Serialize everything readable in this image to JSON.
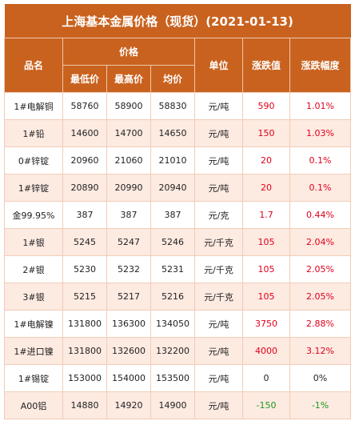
{
  "title": "上海基本金属价格（现货）(2021-01-13)",
  "headers": {
    "name": "品名",
    "price": "价格",
    "low": "最低价",
    "high": "最高价",
    "avg": "均价",
    "unit": "单位",
    "change": "涨跌值",
    "pct": "涨跌幅度"
  },
  "rows": [
    [
      "1#电解铜",
      "58760",
      "58900",
      "58830",
      "元/吨",
      "590",
      "1.01%"
    ],
    [
      "1#铅",
      "14600",
      "14700",
      "14650",
      "元/吨",
      "150",
      "1.03%"
    ],
    [
      "0#锌锭",
      "20960",
      "21060",
      "21010",
      "元/吨",
      "20",
      "0.1%"
    ],
    [
      "1#锌锭",
      "20890",
      "20990",
      "20940",
      "元/吨",
      "20",
      "0.1%"
    ],
    [
      "金99.95%",
      "387",
      "387",
      "387",
      "元/克",
      "1.7",
      "0.44%"
    ],
    [
      "1#银",
      "5245",
      "5247",
      "5246",
      "元/千克",
      "105",
      "2.04%"
    ],
    [
      "2#银",
      "5230",
      "5232",
      "5231",
      "元/千克",
      "105",
      "2.05%"
    ],
    [
      "3#银",
      "5215",
      "5217",
      "5216",
      "元/千克",
      "105",
      "2.05%"
    ],
    [
      "1#电解镍",
      "131800",
      "136300",
      "134050",
      "元/吨",
      "3750",
      "2.88%"
    ],
    [
      "1#进口镍",
      "131800",
      "132600",
      "132200",
      "元/吨",
      "4000",
      "3.12%"
    ],
    [
      "1#锡锭",
      "153000",
      "154000",
      "153500",
      "元/吨",
      "0",
      "0%"
    ],
    [
      "A00铝",
      "14880",
      "14920",
      "14900",
      "元/吨",
      "-150",
      "-1%"
    ]
  ]
}
